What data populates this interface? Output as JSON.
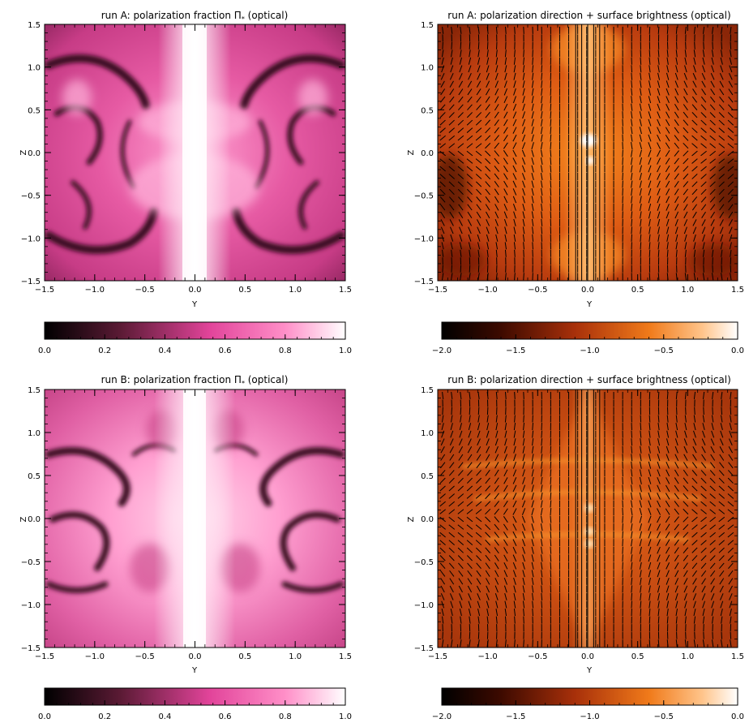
{
  "chart_data": [
    {
      "type": "heatmap",
      "title": "run A: polarization fraction Π",
      "title_sub": "*",
      "title_suffix": " (optical)",
      "xlabel": "Y",
      "ylabel": "Z",
      "xlim": [
        -1.5,
        1.5
      ],
      "ylim": [
        -1.5,
        1.5
      ],
      "xticks": [
        "−1.5",
        "−1.0",
        "−0.5",
        "0.0",
        "0.5",
        "1.0",
        "1.5"
      ],
      "yticks": [
        "−1.5",
        "−1.0",
        "−0.5",
        "0.0",
        "0.5",
        "1.0",
        "1.5"
      ],
      "colormap": "black-magenta-white",
      "colorbar": {
        "range": [
          0.0,
          1.0
        ],
        "ticks": [
          "0.0",
          "0.2",
          "0.4",
          "0.6",
          "0.8",
          "1.0"
        ]
      },
      "features": {
        "vectors": false,
        "polarization_fraction_bright_core": true
      }
    },
    {
      "type": "heatmap",
      "title": "run A: polarization direction + surface brightness (optical)",
      "xlabel": "Y",
      "ylabel": "Z",
      "xlim": [
        -1.5,
        1.5
      ],
      "ylim": [
        -1.5,
        1.5
      ],
      "xticks": [
        "−1.5",
        "−1.0",
        "−0.5",
        "0.0",
        "0.5",
        "1.0",
        "1.5"
      ],
      "yticks": [
        "−1.5",
        "−1.0",
        "−0.5",
        "0.0",
        "0.5",
        "1.0",
        "1.5"
      ],
      "colormap": "black-red-orange-white",
      "colorbar": {
        "range": [
          -2.0,
          0.0
        ],
        "ticks": [
          "−2.0",
          "−1.5",
          "−1.0",
          "−0.5",
          "0.0"
        ]
      },
      "features": {
        "vectors": true
      }
    },
    {
      "type": "heatmap",
      "title": "run B: polarization fraction Π",
      "title_sub": "*",
      "title_suffix": " (optical)",
      "xlabel": "Y",
      "ylabel": "Z",
      "xlim": [
        -1.5,
        1.5
      ],
      "ylim": [
        -1.5,
        1.5
      ],
      "xticks": [
        "−1.5",
        "−1.0",
        "−0.5",
        "0.0",
        "0.5",
        "1.0",
        "1.5"
      ],
      "yticks": [
        "−1.5",
        "−1.0",
        "−0.5",
        "0.0",
        "0.5",
        "1.0",
        "1.5"
      ],
      "colormap": "black-magenta-white",
      "colorbar": {
        "range": [
          0.0,
          1.0
        ],
        "ticks": [
          "0.0",
          "0.2",
          "0.4",
          "0.6",
          "0.8",
          "1.0"
        ]
      },
      "features": {
        "vectors": false
      }
    },
    {
      "type": "heatmap",
      "title": "run B: polarization direction + surface brightness (optical)",
      "xlabel": "Y",
      "ylabel": "Z",
      "xlim": [
        -1.5,
        1.5
      ],
      "ylim": [
        -1.5,
        1.5
      ],
      "xticks": [
        "−1.5",
        "−1.0",
        "−0.5",
        "0.0",
        "0.5",
        "1.0",
        "1.5"
      ],
      "yticks": [
        "−1.5",
        "−1.0",
        "−0.5",
        "0.0",
        "0.5",
        "1.0",
        "1.5"
      ],
      "colormap": "black-red-orange-white",
      "colorbar": {
        "range": [
          -2.0,
          0.0
        ],
        "ticks": [
          "−2.0",
          "−1.5",
          "−1.0",
          "−0.5",
          "0.0"
        ]
      },
      "features": {
        "vectors": true
      }
    }
  ],
  "colors": {
    "magenta_dark": "#2a0a18",
    "magenta_mid": "#d9478f",
    "magenta_light": "#ff9fcc",
    "white": "#ffffff",
    "fire_dark": "#1a0000",
    "fire_mid": "#b33a10",
    "fire_orange": "#f07a1a",
    "fire_light": "#ffe7c2"
  }
}
